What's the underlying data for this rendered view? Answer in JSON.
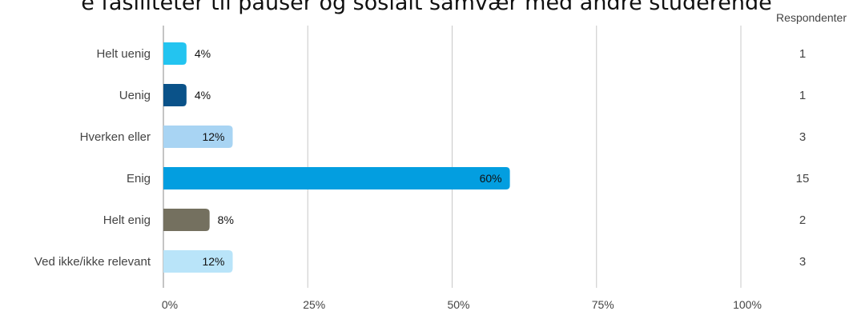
{
  "chart_data": {
    "type": "bar",
    "orientation": "horizontal",
    "title": "e fasiliteter til pauser og sosialt samvær med andre studerende",
    "respondents_label": "Respondenter",
    "categories": [
      "Helt uenig",
      "Uenig",
      "Hverken eller",
      "Enig",
      "Helt enig",
      "Ved ikke/ikke relevant"
    ],
    "values": [
      4,
      4,
      12,
      60,
      8,
      12
    ],
    "value_labels": [
      "4%",
      "4%",
      "12%",
      "60%",
      "8%",
      "12%"
    ],
    "respondents": [
      1,
      1,
      3,
      15,
      2,
      3
    ],
    "colors": [
      "#23c4f0",
      "#0a5289",
      "#a8d4f3",
      "#039ee0",
      "#74705f",
      "#b9e4f9"
    ],
    "xlim": [
      0,
      100
    ],
    "x_ticks": [
      0,
      25,
      50,
      75,
      100
    ],
    "x_tick_labels": [
      "0%",
      "25%",
      "50%",
      "75%",
      "100%"
    ],
    "grid": true,
    "legend": "none"
  }
}
